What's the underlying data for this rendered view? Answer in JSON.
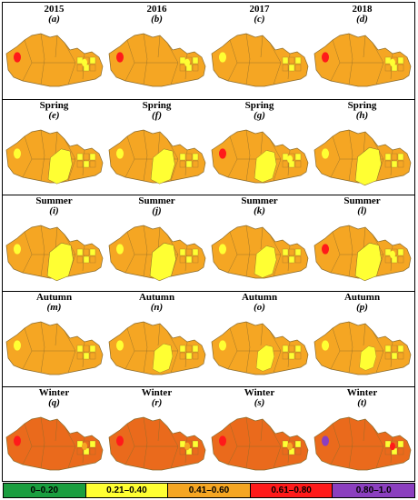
{
  "colors": {
    "c0": "#1a9e3f",
    "c1": "#ffff33",
    "c2": "#f5a623",
    "c3": "#ff1a1a",
    "c4": "#8b3fbf",
    "winter": "#ea6a1c",
    "boundary": "#8a6a2a"
  },
  "rows": [
    {
      "cells": [
        {
          "title": "2015",
          "label": "(a)",
          "spots": [
            {
              "cls": "c3"
            },
            {
              "cls": "c1"
            }
          ],
          "yellow": 0.05
        },
        {
          "title": "2016",
          "label": "(b)",
          "spots": [
            {
              "cls": "c3"
            },
            {
              "cls": "c1"
            }
          ],
          "yellow": 0.05
        },
        {
          "title": "2017",
          "label": "(c)",
          "spots": [
            {
              "cls": "c1"
            }
          ],
          "yellow": 0.03
        },
        {
          "title": "2018",
          "label": "(d)",
          "spots": [
            {
              "cls": "c3"
            },
            {
              "cls": "c1"
            }
          ],
          "yellow": 0.05
        }
      ]
    },
    {
      "cells": [
        {
          "title": "Spring",
          "label": "(e)",
          "spots": [
            {
              "cls": "c1"
            }
          ],
          "yellow": 0.3
        },
        {
          "title": "Spring",
          "label": "(f)",
          "spots": [
            {
              "cls": "c1"
            }
          ],
          "yellow": 0.3
        },
        {
          "title": "Spring",
          "label": "(g)",
          "spots": [
            {
              "cls": "c3"
            },
            {
              "cls": "c1"
            }
          ],
          "yellow": 0.25
        },
        {
          "title": "Spring",
          "label": "(h)",
          "spots": [
            {
              "cls": "c1"
            }
          ],
          "yellow": 0.35
        }
      ]
    },
    {
      "cells": [
        {
          "title": "Summer",
          "label": "(i)",
          "spots": [
            {
              "cls": "c1"
            }
          ],
          "yellow": 0.35
        },
        {
          "title": "Summer",
          "label": "(j)",
          "spots": [
            {
              "cls": "c1"
            }
          ],
          "yellow": 0.35
        },
        {
          "title": "Summer",
          "label": "(k)",
          "spots": [
            {
              "cls": "c1"
            }
          ],
          "yellow": 0.25
        },
        {
          "title": "Summer",
          "label": "(l)",
          "spots": [
            {
              "cls": "c3"
            },
            {
              "cls": "c1"
            }
          ],
          "yellow": 0.35
        }
      ]
    },
    {
      "cells": [
        {
          "title": "Autumn",
          "label": "(m)",
          "spots": [
            {
              "cls": "c1"
            }
          ],
          "yellow": 0.1
        },
        {
          "title": "Autumn",
          "label": "(n)",
          "spots": [
            {
              "cls": "c1"
            }
          ],
          "yellow": 0.2
        },
        {
          "title": "Autumn",
          "label": "(o)",
          "spots": [
            {
              "cls": "c1"
            }
          ],
          "yellow": 0.15
        },
        {
          "title": "Autumn",
          "label": "(p)",
          "spots": [
            {
              "cls": "c1"
            }
          ],
          "yellow": 0.12
        }
      ]
    },
    {
      "cells": [
        {
          "title": "Winter",
          "label": "(q)",
          "spots": [
            {
              "cls": "c3"
            },
            {
              "cls": "c2"
            }
          ],
          "yellow": 0.0,
          "winter": true
        },
        {
          "title": "Winter",
          "label": "(r)",
          "spots": [
            {
              "cls": "c3"
            },
            {
              "cls": "c2"
            }
          ],
          "yellow": 0.0,
          "winter": true
        },
        {
          "title": "Winter",
          "label": "(s)",
          "spots": [
            {
              "cls": "c3"
            },
            {
              "cls": "c2"
            }
          ],
          "yellow": 0.0,
          "winter": true
        },
        {
          "title": "Winter",
          "label": "(t)",
          "spots": [
            {
              "cls": "c4"
            },
            {
              "cls": "c3"
            }
          ],
          "yellow": 0.0,
          "winter": true
        }
      ]
    }
  ],
  "legend": [
    {
      "label": "0–0.20",
      "color": "#1a9e3f"
    },
    {
      "label": "0.21–0.40",
      "color": "#ffff33"
    },
    {
      "label": "0.41–0.60",
      "color": "#f5a623"
    },
    {
      "label": "0.61–0.80",
      "color": "#ff1a1a"
    },
    {
      "label": "0.80–1.0",
      "color": "#8b3fbf"
    }
  ]
}
